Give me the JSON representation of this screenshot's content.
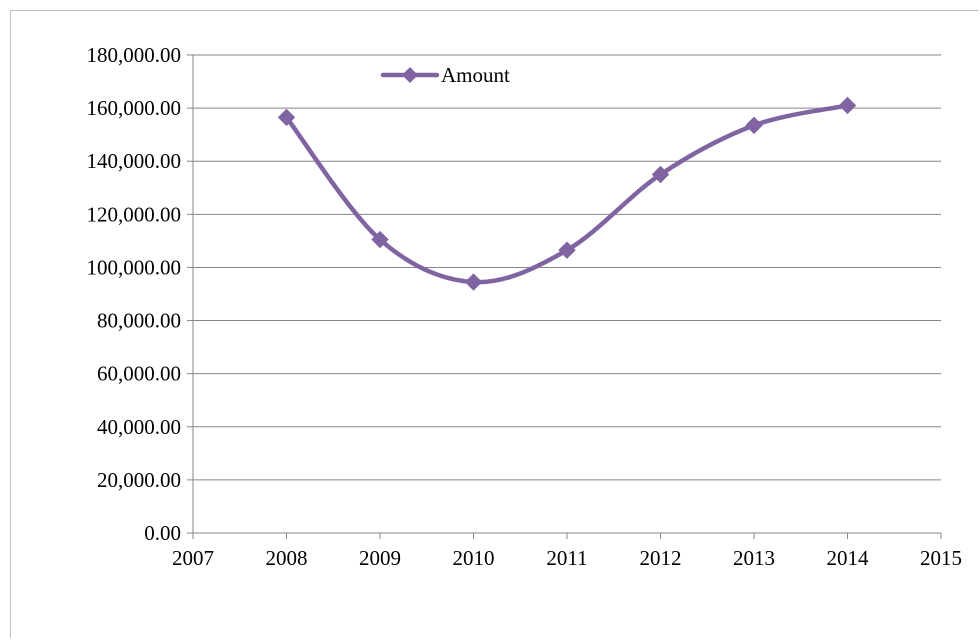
{
  "chart_data": {
    "type": "line",
    "smooth": true,
    "title": "",
    "xlabel": "",
    "ylabel": "",
    "x_ticks": [
      2007,
      2008,
      2009,
      2010,
      2011,
      2012,
      2013,
      2014,
      2015
    ],
    "x_tick_labels": [
      "2007",
      "2008",
      "2009",
      "2010",
      "2011",
      "2012",
      "2013",
      "2014",
      "2015"
    ],
    "xlim": [
      2007,
      2015
    ],
    "ylim": [
      0,
      180000
    ],
    "y_ticks": [
      0,
      20000,
      40000,
      60000,
      80000,
      100000,
      120000,
      140000,
      160000,
      180000
    ],
    "y_tick_labels": [
      "0.00",
      "20,000.00",
      "40,000.00",
      "60,000.00",
      "80,000.00",
      "100,000.00",
      "120,000.00",
      "140,000.00",
      "160,000.00",
      "180,000.00"
    ],
    "grid": "horizontal",
    "legend_position": "top-center",
    "series": [
      {
        "name": "Amount",
        "color": "#8064a2",
        "marker": "diamond",
        "x": [
          2008,
          2009,
          2010,
          2011,
          2012,
          2013,
          2014
        ],
        "values": [
          156500,
          110500,
          94500,
          106500,
          135000,
          153500,
          161000
        ]
      }
    ]
  }
}
